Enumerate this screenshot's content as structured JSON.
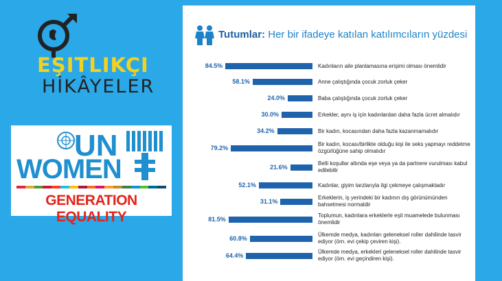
{
  "brand": {
    "line1": "EŞITLIKÇI",
    "line2": "HİKÂYELER"
  },
  "unwomen": {
    "un": "UN",
    "women": "WOMEN",
    "tagline": "GENERATION EQUALITY"
  },
  "colors": {
    "background": "#2aa8e8",
    "bar": "#1f63ad",
    "brand_yellow": "#f2d21f",
    "un_blue": "#1f8fcf",
    "ge_red": "#e2231a"
  },
  "chart_data": {
    "type": "bar",
    "title": "Tutumlar:",
    "subtitle": "Her bir ifadeye katılan katılımcıların yüzdesi",
    "xlim": [
      0,
      100
    ],
    "unit": "%",
    "categories": [
      "Kadınların aile planlamasına erişimi olması önemlidir",
      "Anne çalıştığında çocuk zorluk çeker",
      "Baba çalıştığında çocuk zorluk çeker",
      "Erkekler, aynı iş için kadınlardan daha fazla ücret almalıdır",
      "Bir kadın, kocasından daha fazla kazanmamalıdır",
      "Bir kadın, kocası/birlikte olduğu kişi ile seks yapmayı reddetme özgürlüğüne sahip olmalıdır",
      "Belli koşullar altında eşe veya ya da partnere vurulması kabul edilebilir",
      "Kadınlar, giyim tarzlarıyla ilgi çekmeye çalışmaktadır",
      "Erkeklerin, iş yerindeki bir kadının dış görünümünden bahsetmesi normaldir",
      "Toplumun, kadınlara erkeklerle eşit muamelede bulunması önemlidir",
      "Ülkemde medya, kadınları geleneksel roller dahilinde tasvir ediyor (örn. evi çekip çeviren kişi).",
      "Ülkemde medya, erkekleri geleneksel roller dahilinde tasvir ediyor (örn. evi geçindiren kişi)."
    ],
    "values": [
      84.5,
      58.1,
      24.0,
      30.0,
      34.2,
      79.2,
      21.6,
      52.1,
      31.1,
      81.5,
      60.8,
      64.4
    ],
    "value_labels": [
      "84.5%",
      "58.1%",
      "24.0%",
      "30.0%",
      "34.2%",
      "79.2%",
      "21.6%",
      "52.1%",
      "31.1%",
      "81.5%",
      "60.8%",
      "64.4%"
    ]
  }
}
